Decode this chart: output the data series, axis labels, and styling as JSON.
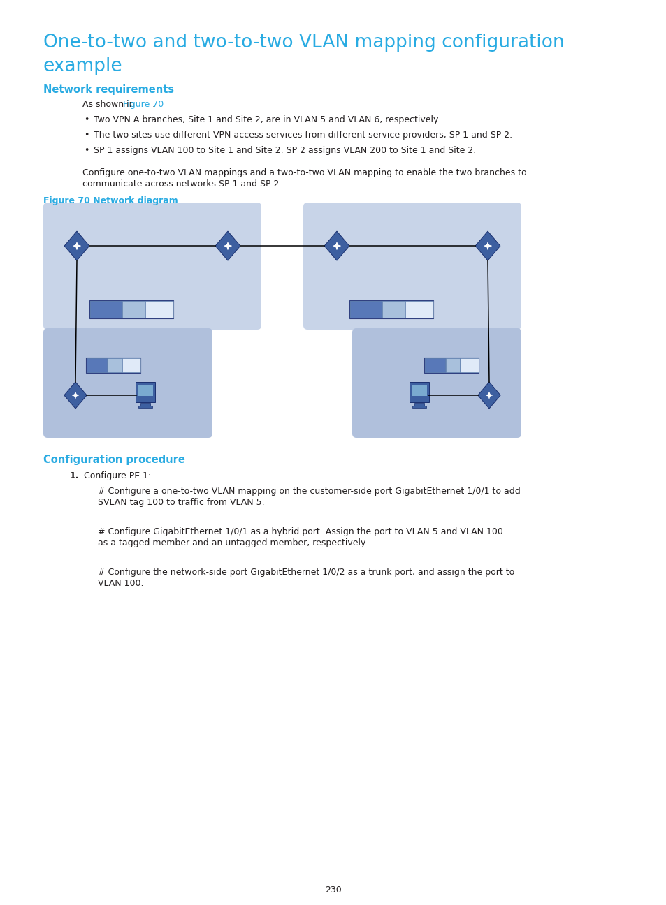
{
  "title_line1": "One-to-two and two-to-two VLAN mapping configuration",
  "title_line2": "example",
  "title_color": "#29ABE2",
  "title_fontsize": 19,
  "section1_heading": "Network requirements",
  "section1_color": "#29ABE2",
  "section1_fontsize": 10.5,
  "intro_pre": "As shown in ",
  "intro_link": "Figure 70",
  "intro_post": ":",
  "link_color": "#29ABE2",
  "bullet1": "Two VPN A branches, Site 1 and Site 2, are in VLAN 5 and VLAN 6, respectively.",
  "bullet2": "The two sites use different VPN access services from different service providers, SP 1 and SP 2.",
  "bullet3": "SP 1 assigns VLAN 100 to Site 1 and Site 2. SP 2 assigns VLAN 200 to Site 1 and Site 2.",
  "para1_line1": "Configure one-to-two VLAN mappings and a two-to-two VLAN mapping to enable the two branches to",
  "para1_line2": "communicate across networks SP 1 and SP 2.",
  "figure_caption": "Figure 70 Network diagram",
  "figure_caption_color": "#29ABE2",
  "section2_heading": "Configuration procedure",
  "section2_color": "#29ABE2",
  "section2_fontsize": 10.5,
  "step1_num": "1.",
  "step1_text": "Configure PE 1:",
  "comment1_line1": "# Configure a one-to-two VLAN mapping on the customer-side port GigabitEthernet 1/0/1 to add",
  "comment1_line2": "SVLAN tag 100 to traffic from VLAN 5.",
  "comment2_line1": "# Configure GigabitEthernet 1/0/1 as a hybrid port. Assign the port to VLAN 5 and VLAN 100",
  "comment2_line2": "as a tagged member and an untagged member, respectively.",
  "comment3_line1": "# Configure the network-side port GigabitEthernet 1/0/2 as a trunk port, and assign the port to",
  "comment3_line2": "VLAN 100.",
  "page_number": "230",
  "bg_color": "#ffffff",
  "text_color": "#231F20",
  "body_fontsize": 9.0,
  "diag_bg": "#C8D4E8",
  "diag_bg2": "#B0C0DC",
  "switch_face": "#3D5FA0",
  "switch_edge": "#1A3070",
  "device_seg1": "#5878B8",
  "device_seg2": "#A8C0DC",
  "device_seg3": "#E0EAF8",
  "computer_body": "#3D5FA0",
  "computer_screen": "#7AAAD0"
}
